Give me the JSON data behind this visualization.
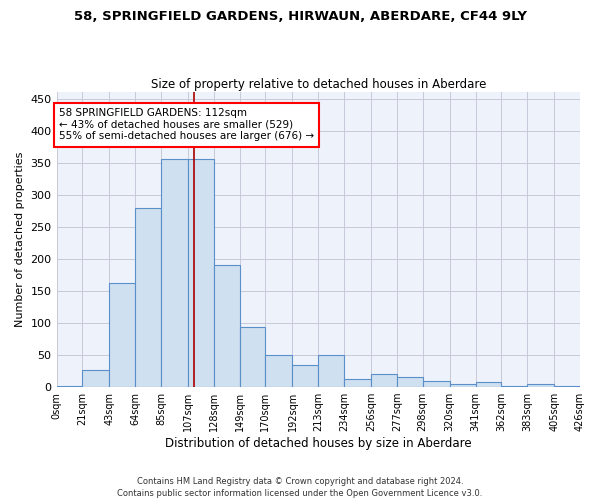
{
  "title": "58, SPRINGFIELD GARDENS, HIRWAUN, ABERDARE, CF44 9LY",
  "subtitle": "Size of property relative to detached houses in Aberdare",
  "xlabel": "Distribution of detached houses by size in Aberdare",
  "ylabel": "Number of detached properties",
  "footer_line1": "Contains HM Land Registry data © Crown copyright and database right 2024.",
  "footer_line2": "Contains public sector information licensed under the Open Government Licence v3.0.",
  "annotation_line1": "58 SPRINGFIELD GARDENS: 112sqm",
  "annotation_line2": "← 43% of detached houses are smaller (529)",
  "annotation_line3": "55% of semi-detached houses are larger (676) →",
  "property_size": 112,
  "bar_color": "#cfe0f0",
  "bar_edge_color": "#5b8fc9",
  "vline_color": "#aa0000",
  "grid_color": "#c8c8d8",
  "background_color": "#eef3fb",
  "bins": [
    0,
    21,
    43,
    64,
    85,
    107,
    128,
    149,
    170,
    192,
    213,
    234,
    256,
    277,
    298,
    320,
    341,
    362,
    383,
    405,
    426
  ],
  "counts": [
    2,
    27,
    163,
    280,
    355,
    355,
    190,
    93,
    50,
    35,
    50,
    12,
    20,
    15,
    10,
    5,
    8,
    2,
    5,
    2
  ],
  "ylim": [
    0,
    460
  ],
  "yticks": [
    0,
    50,
    100,
    150,
    200,
    250,
    300,
    350,
    400,
    450
  ]
}
